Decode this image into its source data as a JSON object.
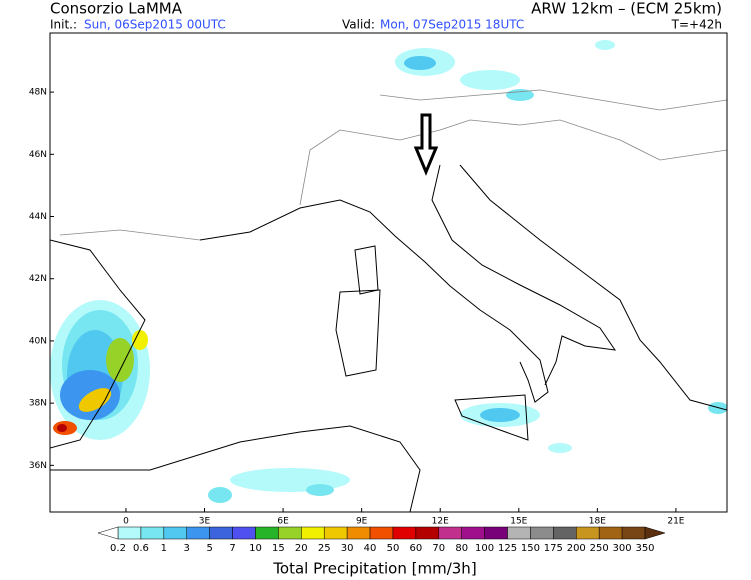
{
  "header": {
    "title": "Consorzio LaMMA",
    "model": "ARW 12km – (ECM 25km)",
    "init_label": "Init.:",
    "init_time": "Sun, 06Sep2015 00UTC",
    "valid_label": "Valid:",
    "valid_time": "Mon, 07Sep2015 18UTC",
    "lead_time": "T=+42h"
  },
  "map": {
    "xlim": [
      -2.9,
      22.95
    ],
    "ylim": [
      34.5,
      49.9
    ],
    "xticks": [
      {
        "value": 0,
        "label": "0"
      },
      {
        "value": 3,
        "label": "3E"
      },
      {
        "value": 6,
        "label": "6E"
      },
      {
        "value": 9,
        "label": "9E"
      },
      {
        "value": 12,
        "label": "12E"
      },
      {
        "value": 15,
        "label": "15E"
      },
      {
        "value": 18,
        "label": "18E"
      },
      {
        "value": 21,
        "label": "21E"
      }
    ],
    "yticks": [
      {
        "value": 36,
        "label": "36N"
      },
      {
        "value": 38,
        "label": "38N"
      },
      {
        "value": 40,
        "label": "40N"
      },
      {
        "value": 42,
        "label": "42N"
      },
      {
        "value": 44,
        "label": "44N"
      },
      {
        "value": 46,
        "label": "46N"
      },
      {
        "value": 48,
        "label": "48N"
      }
    ]
  },
  "colorbar": {
    "label": "Total Precipitation [mm/3h]",
    "levels": [
      0.2,
      0.6,
      1,
      3,
      5,
      7,
      10,
      15,
      20,
      25,
      30,
      40,
      50,
      60,
      70,
      80,
      100,
      125,
      150,
      175,
      200,
      250,
      300,
      350
    ],
    "colors": [
      "#b4fafa",
      "#78e6f0",
      "#50c8f0",
      "#3c96f0",
      "#3c64dc",
      "#5050f0",
      "#28b428",
      "#96d228",
      "#f0f000",
      "#f0c800",
      "#f08c00",
      "#f05000",
      "#e00000",
      "#b40000",
      "#c0308c",
      "#a0108c",
      "#780078",
      "#b4b4b4",
      "#8c8c8c",
      "#646464",
      "#c8961e",
      "#a06414",
      "#784614"
    ],
    "under_color": "#ffffff",
    "over_color": "#5a3010"
  }
}
